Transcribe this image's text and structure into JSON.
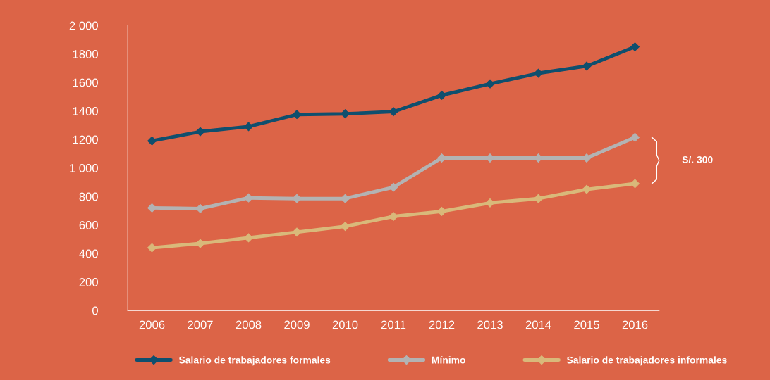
{
  "chart_data": {
    "type": "line",
    "categories": [
      "2006",
      "2007",
      "2008",
      "2009",
      "2010",
      "2011",
      "2012",
      "2013",
      "2014",
      "2015",
      "2016"
    ],
    "series": [
      {
        "name": "Salario de trabajadores formales",
        "color": "#0f4f6e",
        "values": [
          1190,
          1255,
          1290,
          1375,
          1380,
          1395,
          1510,
          1590,
          1665,
          1715,
          1850
        ]
      },
      {
        "name": "Mínimo",
        "color": "#b3b3b3",
        "values": [
          720,
          715,
          790,
          785,
          785,
          865,
          1070,
          1070,
          1070,
          1070,
          1215
        ]
      },
      {
        "name": "Salario de trabajadores informales",
        "color": "#d9b97a",
        "values": [
          440,
          470,
          510,
          550,
          590,
          660,
          695,
          755,
          785,
          850,
          890
        ]
      }
    ],
    "ylim": [
      0,
      2000
    ],
    "yticks": [
      0,
      200,
      400,
      600,
      800,
      {
        "value": 1000,
        "label": "1 000"
      },
      1200,
      1400,
      1600,
      1800,
      {
        "value": 2000,
        "label": "2 000"
      }
    ],
    "annotations": [
      "S/. 300"
    ],
    "marker": "diamond",
    "line_style": "solid",
    "grid": false,
    "legend": "bottom"
  }
}
